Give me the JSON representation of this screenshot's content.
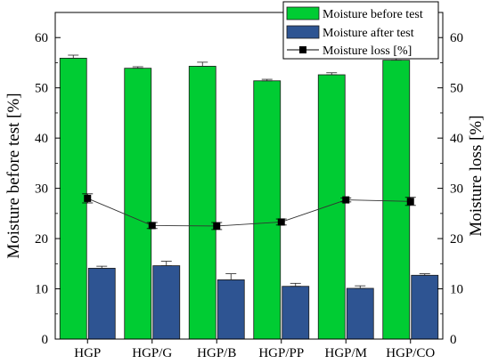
{
  "chart_data": {
    "type": "bar",
    "categories": [
      "HGP",
      "HGP/G",
      "HGP/B",
      "HGP/PP",
      "HGP/M",
      "HGP/CO"
    ],
    "series": [
      {
        "name": "Moisture before test",
        "kind": "bar",
        "axis": "left",
        "color": "#00cc33",
        "values": [
          55.9,
          53.9,
          54.3,
          51.4,
          52.6,
          55.5
        ],
        "errors": [
          0.6,
          0.3,
          0.8,
          0.3,
          0.4,
          0.8
        ]
      },
      {
        "name": "Moisture after test",
        "kind": "bar",
        "axis": "left",
        "color": "#2e5492",
        "values": [
          14.1,
          14.6,
          11.8,
          10.5,
          10.1,
          12.7
        ],
        "errors": [
          0.4,
          0.9,
          1.2,
          0.6,
          0.5,
          0.3
        ]
      },
      {
        "name": "Moisture loss [%]",
        "kind": "line",
        "axis": "right",
        "color": "#000000",
        "values": [
          28.0,
          22.6,
          22.5,
          23.3,
          27.7,
          27.4
        ],
        "errors": [
          0.9,
          0.6,
          0.7,
          0.6,
          0.4,
          0.8
        ]
      }
    ],
    "ylabel": "Moisture before test [%]",
    "y2label": "Moisture loss [%]",
    "ylim": [
      0,
      65
    ],
    "y2lim": [
      0,
      65
    ],
    "yticks": [
      "0",
      "10",
      "20",
      "30",
      "40",
      "50",
      "60"
    ],
    "grid": false,
    "legend_position": "top-right"
  }
}
